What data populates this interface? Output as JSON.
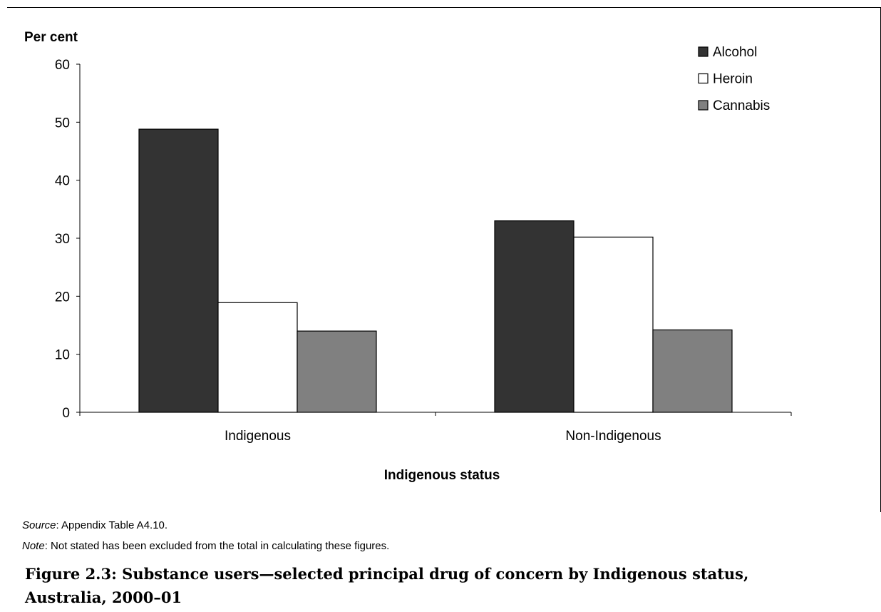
{
  "chart_data": {
    "type": "bar",
    "ylabel": "Per cent",
    "xlabel": "Indigenous status",
    "ylim": [
      0,
      60
    ],
    "yticks": [
      "0",
      "10",
      "20",
      "30",
      "40",
      "50",
      "60"
    ],
    "categories": [
      "Indigenous",
      "Non-Indigenous"
    ],
    "series": [
      {
        "name": "Alcohol",
        "values": [
          48.8,
          33.0
        ],
        "color": "#333333"
      },
      {
        "name": "Heroin",
        "values": [
          18.9,
          30.2
        ],
        "color": "#ffffff"
      },
      {
        "name": "Cannabis",
        "values": [
          14.0,
          14.2
        ],
        "color": "#808080"
      }
    ],
    "legend": "top-right",
    "grid": false
  },
  "notes": {
    "source_label": "Source",
    "source_text": ": Appendix Table A4.10.",
    "note_label": "Note",
    "note_text": ": Not stated has been excluded from the total in calculating these figures."
  },
  "caption": {
    "line1": "Figure 2.3: Substance users—selected principal drug of concern by Indigenous status,",
    "line2": "Australia, 2000–01"
  }
}
